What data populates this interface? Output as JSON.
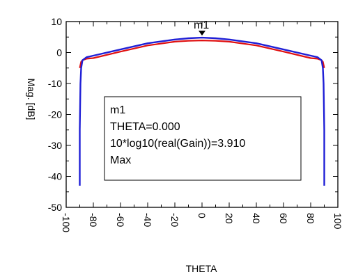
{
  "chart_data": {
    "type": "line",
    "title": "",
    "xlabel": "THETA",
    "ylabel": "Mag. [dB]",
    "xlim": [
      -100,
      100
    ],
    "ylim": [
      -50,
      10
    ],
    "x_ticks": [
      "-100",
      "-80",
      "-60",
      "-40",
      "-20",
      "0",
      "20",
      "40",
      "60",
      "80",
      "100"
    ],
    "y_ticks": [
      "10",
      "0",
      "-10",
      "-20",
      "-30",
      "-40",
      "-50"
    ],
    "grid": false,
    "series": [
      {
        "color": "#1f1fd6",
        "x": [
          -90,
          -90,
          -89.5,
          -89,
          -88,
          -85,
          -80,
          -60,
          -40,
          -20,
          -10,
          0,
          10,
          20,
          40,
          60,
          80,
          85,
          88,
          89,
          89.5,
          90,
          90
        ],
        "y": [
          -43,
          -25,
          -10,
          -5,
          -2.5,
          -1.5,
          -1,
          1,
          3,
          4.2,
          4.6,
          4.8,
          4.6,
          4.2,
          3,
          1,
          -1,
          -1.5,
          -2.5,
          -5,
          -10,
          -25,
          -43
        ]
      },
      {
        "color": "#e01010",
        "x": [
          -90,
          -89.5,
          -89,
          -88,
          -85,
          -80,
          -60,
          -40,
          -20,
          -10,
          0,
          10,
          20,
          40,
          60,
          80,
          85,
          88,
          89,
          89.5,
          90
        ],
        "y": [
          -5,
          -4,
          -3,
          -2.5,
          -2,
          -1.8,
          0.3,
          2.3,
          3.5,
          3.8,
          3.91,
          3.8,
          3.5,
          2.3,
          0.3,
          -1.8,
          -2,
          -2.5,
          -3,
          -4,
          -5
        ]
      }
    ],
    "marker": {
      "name": "m1",
      "x": 0,
      "y": 3.91,
      "lines": [
        "m1",
        "THETA=0.000",
        "10*log10(real(Gain))=3.910",
        "Max"
      ]
    }
  }
}
